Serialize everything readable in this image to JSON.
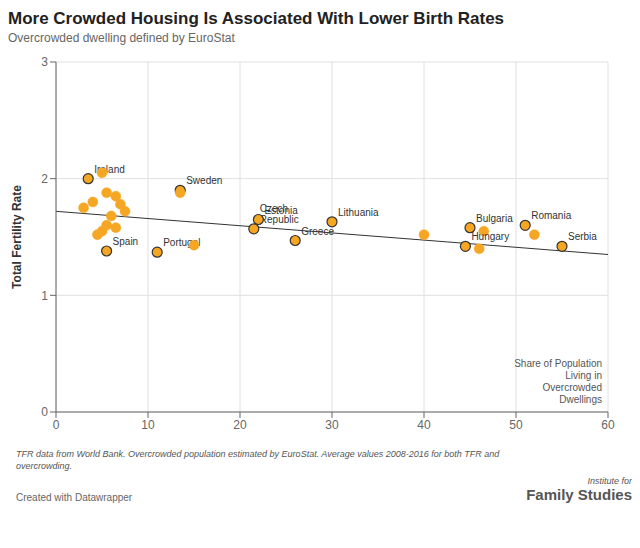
{
  "chart_data": {
    "type": "scatter",
    "title": "More Crowded Housing Is Associated With Lower Birth Rates",
    "subtitle": "Overcrowded dwelling defined by EuroStat",
    "y_label": "Total Fertility Rate",
    "x_label": "Share of Population\nLiving in\nOvercrowded\nDwellings",
    "footnote": "TFR data from World Bank. Overcrowded population estimated by EuroStat. Average values 2008-2016 for both TFR and\novercrowding.",
    "credit": "Created with Datawrapper",
    "source_lines": [
      "Institute for",
      "Family Studies"
    ],
    "xlim": [
      0,
      60
    ],
    "ylim": [
      0,
      3
    ],
    "xticks": [
      0,
      10,
      20,
      30,
      40,
      50,
      60
    ],
    "yticks": [
      0,
      1,
      2,
      3
    ],
    "grid": true,
    "series": [
      {
        "type": "scatter",
        "color": "#F5A623",
        "x": [
          3.5,
          5.0,
          4.0,
          3.0,
          5.5,
          6.5,
          7.0,
          7.5,
          6.0,
          13.5,
          5.5,
          4.5,
          5.0,
          6.5,
          5.5,
          13.5,
          11.0,
          15.0,
          21.5,
          22.0,
          26.0,
          30.0,
          40.0,
          45.0,
          46.5,
          44.5,
          46.0,
          51.0,
          52.0,
          55.0
        ],
        "values": [
          2.0,
          2.05,
          1.8,
          1.75,
          1.88,
          1.85,
          1.78,
          1.72,
          1.68,
          1.9,
          1.6,
          1.52,
          1.55,
          1.58,
          1.38,
          1.88,
          1.37,
          1.43,
          1.57,
          1.65,
          1.47,
          1.63,
          1.52,
          1.58,
          1.55,
          1.42,
          1.4,
          1.6,
          1.52,
          1.42
        ],
        "labels": [
          "Ireland",
          null,
          null,
          null,
          null,
          null,
          null,
          null,
          null,
          "Sweden",
          null,
          null,
          null,
          null,
          "Spain",
          null,
          "Portugal",
          null,
          "Czech\nRepublic",
          "Estonia",
          "Greece",
          "Lithuania",
          null,
          "Bulgaria",
          null,
          "Hungary",
          null,
          "Romania",
          null,
          "Serbia"
        ]
      },
      {
        "type": "line",
        "color": "#333333",
        "x": [
          0,
          60
        ],
        "values": [
          1.72,
          1.35
        ]
      }
    ]
  }
}
